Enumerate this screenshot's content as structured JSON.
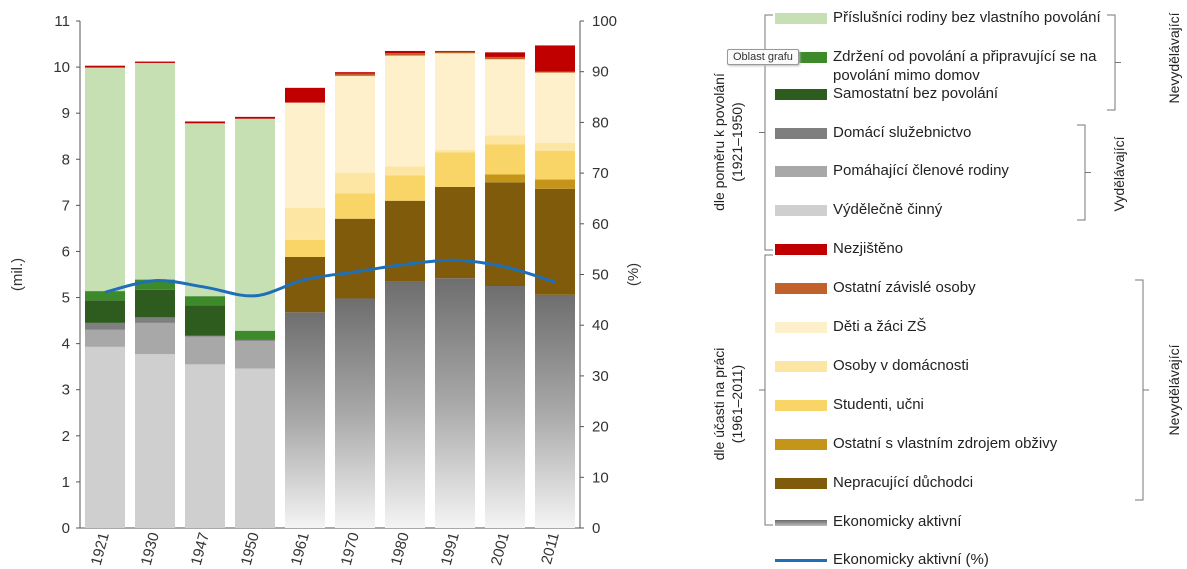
{
  "chart_data": {
    "type": "bar",
    "stacked": true,
    "categories": [
      "1921",
      "1930",
      "1947",
      "1950",
      "1961",
      "1970",
      "1980",
      "1991",
      "2001",
      "2011"
    ],
    "ylabel_left": "(mil.)",
    "ylabel_right": "(%)",
    "ylim_left": [
      0,
      11
    ],
    "ylim_right": [
      0,
      100
    ],
    "yticks_left": [
      "0",
      "1",
      "2",
      "3",
      "4",
      "5",
      "6",
      "7",
      "8",
      "9",
      "10",
      "11"
    ],
    "yticks_right": [
      "0",
      "10",
      "20",
      "30",
      "40",
      "50",
      "60",
      "70",
      "80",
      "90",
      "100"
    ],
    "series": [
      {
        "name": "Výdělečně činný",
        "color": "#cfcfcf",
        "values": [
          3.93,
          3.77,
          3.55,
          3.46,
          0,
          0,
          0,
          0,
          0,
          0
        ]
      },
      {
        "name": "Pomáhající členové rodiny",
        "color": "#a8a8a8",
        "values": [
          0.37,
          0.68,
          0.6,
          0.6,
          0,
          0,
          0,
          0,
          0,
          0
        ]
      },
      {
        "name": "Domácí služebnictvo",
        "color": "#7f7f7f",
        "values": [
          0.15,
          0.12,
          0.02,
          0.02,
          0,
          0,
          0,
          0,
          0,
          0
        ]
      },
      {
        "name": "Ekonomicky aktivní",
        "color": "#909090",
        "values": [
          0,
          0,
          0,
          0,
          4.68,
          4.98,
          5.35,
          5.42,
          5.25,
          5.06
        ]
      },
      {
        "name": "Nepracující důchodci",
        "color": "#7f5b0b",
        "values": [
          0,
          0,
          0,
          0,
          1.2,
          1.73,
          1.75,
          1.98,
          2.25,
          2.3
        ]
      },
      {
        "name": "Ostatní s vlastním zdrojem obživy",
        "color": "#c49518",
        "values": [
          0,
          0,
          0,
          0,
          0,
          0,
          0,
          0,
          0.17,
          0.2
        ]
      },
      {
        "name": "Studenti, učni",
        "color": "#f9d466",
        "values": [
          0,
          0,
          0,
          0,
          0.37,
          0.55,
          0.55,
          0.75,
          0.65,
          0.62
        ]
      },
      {
        "name": "Osoby v domácnosti",
        "color": "#fde5a3",
        "values": [
          0,
          0,
          0,
          0,
          0.7,
          0.45,
          0.2,
          0.05,
          0.2,
          0.18
        ]
      },
      {
        "name": "Děti a žáci ZŠ",
        "color": "#fff0cc",
        "values": [
          0,
          0,
          0,
          0,
          2.28,
          2.1,
          2.4,
          2.1,
          1.65,
          1.52
        ]
      },
      {
        "name": "Ostatní závislé osoby",
        "color": "#c0622a",
        "values": [
          0,
          0,
          0,
          0,
          0,
          0.05,
          0.05,
          0.03,
          0.05,
          0.02
        ]
      },
      {
        "name": "Samostatní bez povolání",
        "color": "#2e5c1f",
        "values": [
          0.49,
          0.6,
          0.66,
          0,
          0,
          0,
          0,
          0,
          0,
          0
        ]
      },
      {
        "name": "Zdržení od povolání a připravující se na povolání mimo domov",
        "color": "#3d8a2b",
        "values": [
          0.2,
          0.22,
          0.2,
          0.2,
          0,
          0,
          0,
          0,
          0,
          0
        ]
      },
      {
        "name": "Příslušníci rodiny bez vlastního povolání",
        "color": "#c6e0b4",
        "values": [
          4.85,
          4.7,
          3.75,
          4.6,
          0,
          0,
          0,
          0,
          0,
          0
        ]
      },
      {
        "name": "Nezjištěno",
        "color": "#c00000",
        "values": [
          0.04,
          0.03,
          0.04,
          0.04,
          0.32,
          0.03,
          0.05,
          0.02,
          0.1,
          0.57
        ]
      }
    ],
    "line": {
      "name": "Ekonomicky aktivní (%)",
      "color": "#1f6fb8",
      "axis": "right",
      "values": [
        46.5,
        48.8,
        47.5,
        45.8,
        49.0,
        50.5,
        52.0,
        52.8,
        51.5,
        48.5
      ]
    }
  },
  "legend": {
    "items": [
      {
        "label": "Příslušníci rodiny bez vlastního povolání",
        "color": "#c6e0b4"
      },
      {
        "label": "Zdržení od povolání a připravující se na povolání mimo domov",
        "color": "#3d8a2b"
      },
      {
        "label": "Samostatní bez povolání",
        "color": "#2e5c1f"
      },
      {
        "label": "Domácí služebnictvo",
        "color": "#7f7f7f"
      },
      {
        "label": "Pomáhající členové rodiny",
        "color": "#a8a8a8"
      },
      {
        "label": "Výdělečně činný",
        "color": "#cfcfcf"
      },
      {
        "label": "Nezjištěno",
        "color": "#c00000"
      },
      {
        "label": "Ostatní závislé osoby",
        "color": "#c0622a"
      },
      {
        "label": "Děti a žáci ZŠ",
        "color": "#fff0cc"
      },
      {
        "label": "Osoby v domácnosti",
        "color": "#fde5a3"
      },
      {
        "label": "Studenti, učni",
        "color": "#f9d466"
      },
      {
        "label": "Ostatní s vlastním zdrojem obživy",
        "color": "#c49518"
      },
      {
        "label": "Nepracující důchodci",
        "color": "#7f5b0b"
      },
      {
        "label": "Ekonomicky aktivní",
        "color": "#909090"
      },
      {
        "label": "Ekonomicky aktivní (%)",
        "color": "#1f6fb8"
      }
    ],
    "group_1921_1950": "dle poměru k povolání\n(1921–1950)",
    "group_1961_2011": "dle účasti na práci\n(1961–2011)",
    "nevydelavajici_top": "Nevydělávající",
    "vydelavajici": "Vydělávající",
    "nevydelavajici_bottom": "Nevydělávající",
    "tooltip": "Oblast grafu"
  }
}
